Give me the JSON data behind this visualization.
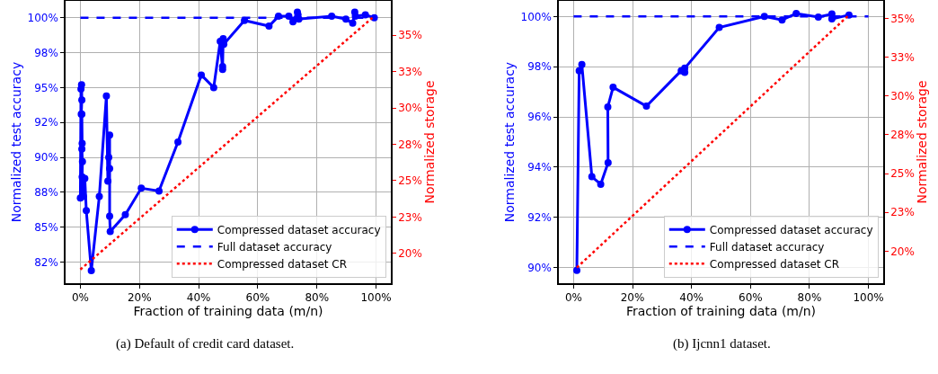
{
  "chart_data": [
    {
      "type": "line",
      "xlabel": "Fraction of training data (m/n)",
      "ylabel": "Normalized test accuracy",
      "y2label": "Normalized storage",
      "annotations": [
        "(a) Default of credit card dataset."
      ],
      "xlim": [
        -5,
        105
      ],
      "xticks": [
        {
          "value": 0,
          "label": "0%"
        },
        {
          "value": 20,
          "label": "20%"
        },
        {
          "value": 40,
          "label": "40%"
        },
        {
          "value": 60,
          "label": "60%"
        },
        {
          "value": 80,
          "label": "80%"
        },
        {
          "value": 100,
          "label": "100%"
        }
      ],
      "ylim": [
        81.0,
        101.2
      ],
      "yticks": [
        {
          "value": 82.5,
          "label": "82%"
        },
        {
          "value": 85,
          "label": "85%"
        },
        {
          "value": 87.5,
          "label": "88%"
        },
        {
          "value": 90,
          "label": "90%"
        },
        {
          "value": 92.5,
          "label": "92%"
        },
        {
          "value": 95,
          "label": "95%"
        },
        {
          "value": 97.5,
          "label": "98%"
        },
        {
          "value": 100,
          "label": "100%"
        }
      ],
      "y2lim": [
        17.96,
        37.35
      ],
      "y2ticks": [
        {
          "value": 20,
          "label": "20%"
        },
        {
          "value": 22.5,
          "label": "23%"
        },
        {
          "value": 25,
          "label": "25%"
        },
        {
          "value": 27.5,
          "label": "28%"
        },
        {
          "value": 30,
          "label": "30%"
        },
        {
          "value": 32.5,
          "label": "33%"
        },
        {
          "value": 35,
          "label": "35%"
        }
      ],
      "grid": true,
      "legend": "bottom right",
      "series": [
        {
          "name": "Compressed dataset accuracy",
          "color": "#0000ff",
          "marker": "circle",
          "line_style": "solid",
          "x": [
            0.0,
            0.2,
            0.4,
            0.5,
            0.3,
            0.5,
            0.6,
            0.5,
            0.7,
            0.6,
            1.0,
            1.5,
            2.0,
            3.7,
            6.4,
            8.8,
            9.3,
            9.6,
            9.9,
            9.9,
            9.9,
            10.1,
            15.2,
            20.6,
            26.6,
            33.0,
            40.9,
            45.1,
            47.3,
            48.1,
            48.1,
            48.3,
            48.5,
            55.5,
            63.8,
            67.0,
            70.5,
            71.9,
            73.4,
            73.6,
            73.9,
            85.0,
            89.8,
            92.1,
            92.8,
            93.0,
            96.4,
            99.4
          ],
          "values": [
            87.1,
            94.9,
            95.2,
            94.1,
            93.1,
            93.1,
            91.0,
            90.6,
            89.7,
            88.6,
            87.2,
            88.5,
            86.2,
            81.9,
            87.2,
            94.4,
            88.3,
            90.0,
            91.6,
            89.2,
            85.8,
            84.7,
            85.9,
            87.8,
            87.6,
            91.1,
            95.9,
            95.0,
            98.3,
            96.3,
            96.5,
            98.5,
            98.1,
            99.8,
            99.4,
            100.1,
            100.1,
            99.7,
            100.4,
            100.2,
            99.9,
            100.1,
            99.9,
            99.6,
            100.4,
            100.1,
            100.2,
            100.0
          ]
        },
        {
          "name": "Full dataset accuracy",
          "color": "#0000ff",
          "marker": "none",
          "line_style": "dashed",
          "x": [
            0,
            100
          ],
          "values": [
            100,
            100
          ]
        },
        {
          "name": "Compressed dataset CR",
          "color": "#ff0000",
          "marker": "none",
          "line_style": "dotted",
          "axis": "y2",
          "x": [
            0,
            99.4
          ],
          "values": [
            18.9,
            36.3
          ]
        }
      ]
    },
    {
      "type": "line",
      "xlabel": "Fraction of training data (m/n)",
      "ylabel": "Normalized test accuracy",
      "y2label": "Normalized storage",
      "annotations": [
        "(b) Ijcnn1 dataset."
      ],
      "xlim": [
        -5,
        105
      ],
      "xticks": [
        {
          "value": 0,
          "label": "0%"
        },
        {
          "value": 20,
          "label": "20%"
        },
        {
          "value": 40,
          "label": "40%"
        },
        {
          "value": 60,
          "label": "60%"
        },
        {
          "value": 80,
          "label": "80%"
        },
        {
          "value": 100,
          "label": "100%"
        }
      ],
      "ylim": [
        89.38,
        100.62
      ],
      "yticks": [
        {
          "value": 90,
          "label": "90%"
        },
        {
          "value": 92,
          "label": "92%"
        },
        {
          "value": 94,
          "label": "94%"
        },
        {
          "value": 96,
          "label": "96%"
        },
        {
          "value": 98,
          "label": "98%"
        },
        {
          "value": 100,
          "label": "100%"
        }
      ],
      "y2lim": [
        17.93,
        36.14
      ],
      "y2ticks": [
        {
          "value": 20,
          "label": "20%"
        },
        {
          "value": 22.5,
          "label": "23%"
        },
        {
          "value": 25,
          "label": "25%"
        },
        {
          "value": 27.5,
          "label": "28%"
        },
        {
          "value": 30,
          "label": "30%"
        },
        {
          "value": 32.5,
          "label": "33%"
        },
        {
          "value": 35,
          "label": "35%"
        }
      ],
      "grid": true,
      "legend": "bottom right",
      "series": [
        {
          "name": "Compressed dataset accuracy",
          "color": "#0000ff",
          "marker": "circle",
          "line_style": "solid",
          "x": [
            1.1,
            1.9,
            2.8,
            6.2,
            9.2,
            11.7,
            11.6,
            13.4,
            24.7,
            36.5,
            37.7,
            37.7,
            49.4,
            64.7,
            70.7,
            75.5,
            83.0,
            87.6,
            87.6,
            93.4
          ],
          "values": [
            89.89,
            97.84,
            98.09,
            93.62,
            93.32,
            94.18,
            96.4,
            97.18,
            96.43,
            97.84,
            97.77,
            97.94,
            99.56,
            100.0,
            99.86,
            100.12,
            99.98,
            100.1,
            99.9,
            100.06
          ]
        },
        {
          "name": "Full dataset accuracy",
          "color": "#0000ff",
          "marker": "none",
          "line_style": "dashed",
          "x": [
            0,
            100
          ],
          "values": [
            100,
            100
          ]
        },
        {
          "name": "Compressed dataset CR",
          "color": "#ff0000",
          "marker": "none",
          "line_style": "dotted",
          "axis": "y2",
          "x": [
            1.1,
            93.4
          ],
          "values": [
            18.94,
            35.23
          ]
        }
      ]
    }
  ]
}
